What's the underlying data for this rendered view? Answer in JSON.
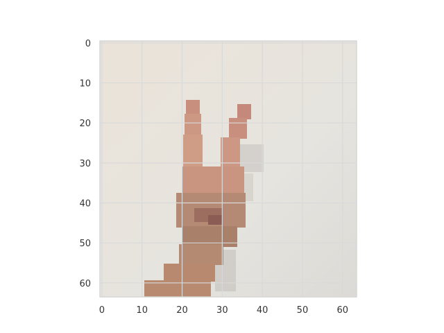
{
  "image": {
    "subject": "pixelated-hand-peace-sign",
    "pixel_grid": [
      64,
      64
    ],
    "background_color": "#e9e6e1",
    "skin_color": "#c79a86",
    "gridline_color": "#d9d9d9"
  },
  "axes": {
    "x_ticks": [
      "0",
      "10",
      "20",
      "30",
      "40",
      "50",
      "60"
    ],
    "y_ticks": [
      "0",
      "10",
      "20",
      "30",
      "40",
      "50",
      "60"
    ],
    "x_range": [
      -0.5,
      63.5
    ],
    "y_range": [
      -0.5,
      63.5
    ],
    "y_inverted": true,
    "grid": true
  }
}
